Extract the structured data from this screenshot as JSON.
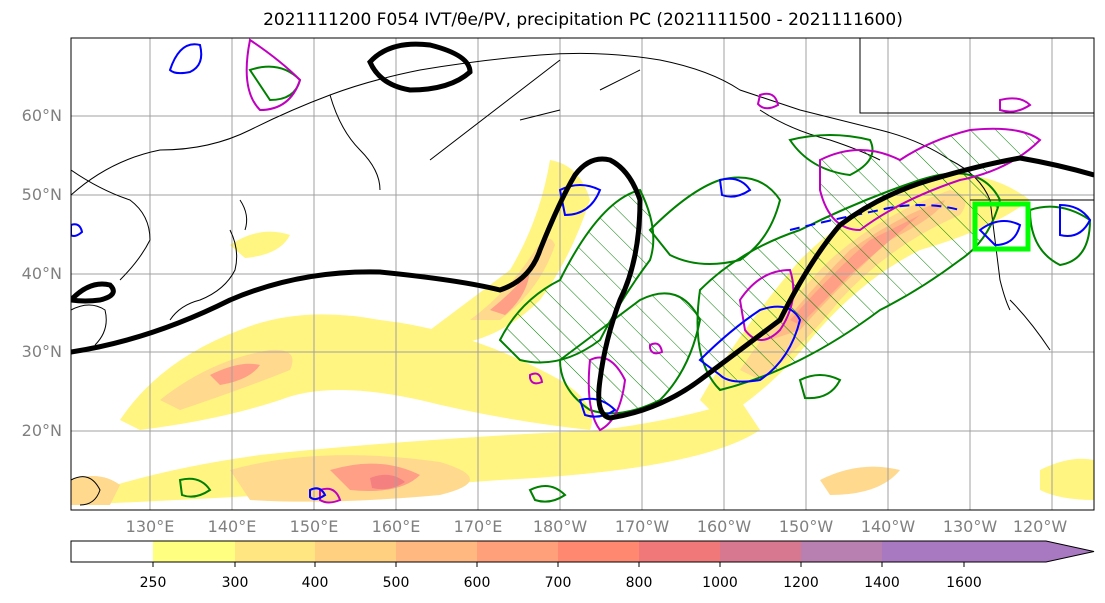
{
  "title": "2021111200 F054 IVT/θe/PV, precipitation PC (2021111500 - 2021111600)",
  "map": {
    "lat_labels": [
      "60°N",
      "50°N",
      "40°N",
      "30°N",
      "20°N"
    ],
    "lon_labels": [
      "130°E",
      "140°E",
      "150°E",
      "160°E",
      "170°E",
      "180°W",
      "170°W",
      "160°W",
      "150°W",
      "140°W",
      "130°W",
      "120°W"
    ],
    "highlight_box_color": "#00ff00",
    "contour_colors": {
      "theta_e": "#000000",
      "pv_blue": "#0000ff",
      "pv_magenta": "#c000c0",
      "precip": "#008000"
    }
  },
  "colorbar": {
    "ticks": [
      "250",
      "300",
      "400",
      "500",
      "600",
      "700",
      "800",
      "1000",
      "1200",
      "1400",
      "1600"
    ],
    "colors": [
      "#ffffff",
      "#ffff80",
      "#ffe680",
      "#ffd080",
      "#ffb880",
      "#ffa07a",
      "#ff8870",
      "#f07878",
      "#d87890",
      "#b880b0",
      "#a878c0"
    ]
  }
}
